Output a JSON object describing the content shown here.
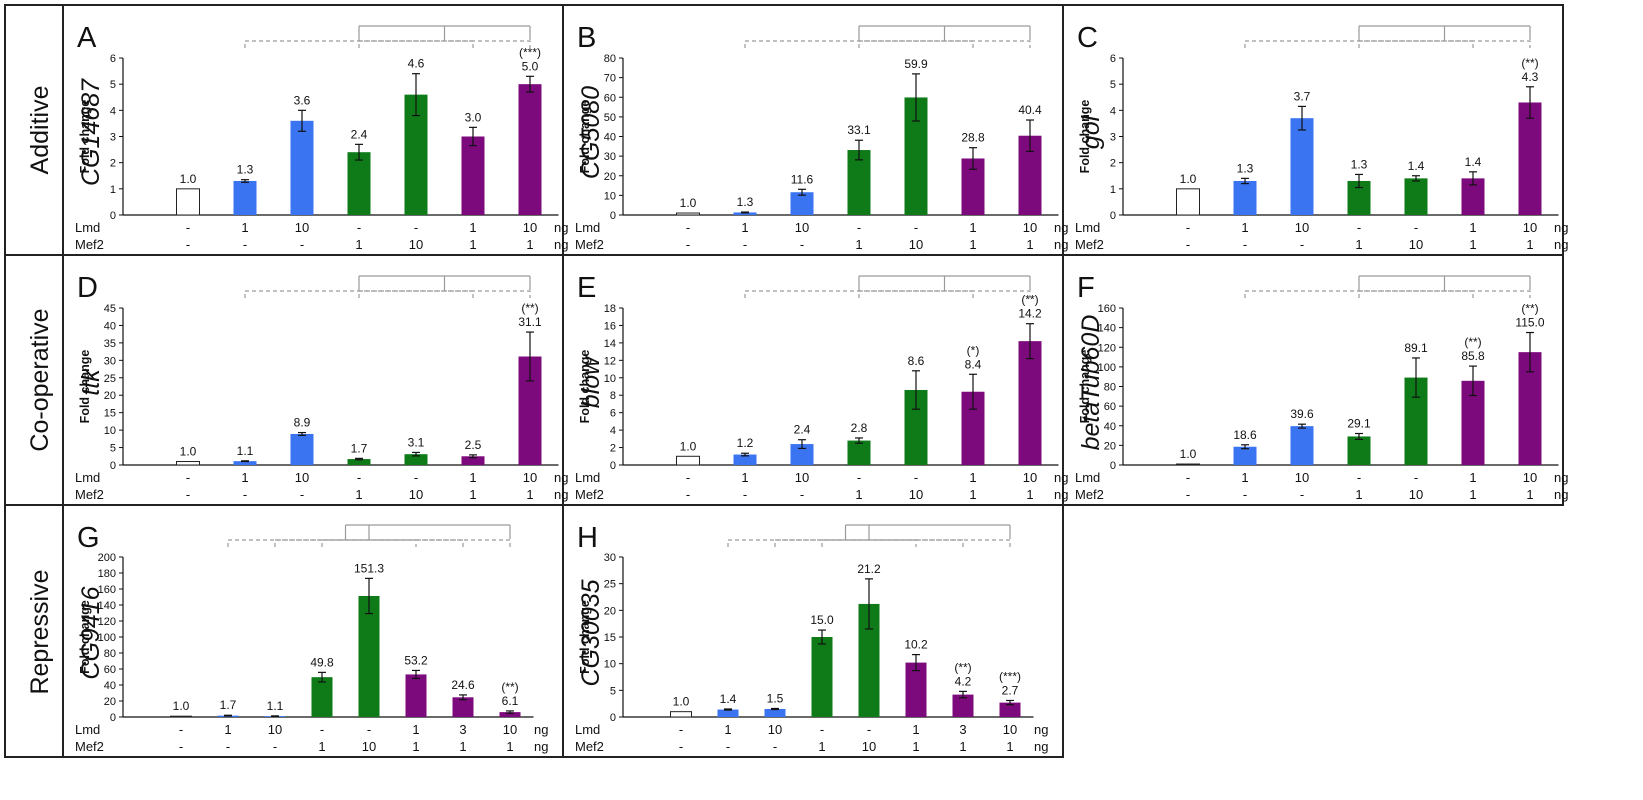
{
  "colors": {
    "control": "#ffffff",
    "lmd": "#3b74f0",
    "mef2": "#0e7a18",
    "combo": "#7d0a7d",
    "bracket": "#9a9a9a"
  },
  "rows": [
    {
      "label": "Additive"
    },
    {
      "label": "Co-operative"
    },
    {
      "label": "Repressive"
    }
  ],
  "chart_data": [
    {
      "type": "bar",
      "panel": "A",
      "gene": "CG14687",
      "ylabel": "Fold change",
      "ylim": [
        0,
        6
      ],
      "yticks": [
        0,
        1,
        2,
        3,
        4,
        5,
        6
      ],
      "values": [
        1.0,
        1.3,
        3.6,
        2.4,
        4.6,
        3.0,
        5.0
      ],
      "errors": [
        0,
        0.05,
        0.4,
        0.3,
        0.8,
        0.35,
        0.3
      ],
      "value_labels": [
        "1.0",
        "1.3",
        "3.6",
        "2.4",
        "4.6",
        "3.0",
        "5.0"
      ],
      "significance": [
        "",
        "",
        "",
        "",
        "",
        "",
        "(***)"
      ],
      "groups": [
        "control",
        "lmd",
        "lmd",
        "mef2",
        "mef2",
        "combo",
        "combo"
      ],
      "lmd": [
        "-",
        "1",
        "10",
        "-",
        "-",
        "1",
        "10"
      ],
      "mef2": [
        "-",
        "-",
        "-",
        "1",
        "10",
        "1",
        "1"
      ],
      "lmd_label": "Lmd",
      "mef2_label": "Mef2",
      "unit": "ng"
    },
    {
      "type": "bar",
      "panel": "B",
      "gene": "CG5080",
      "ylabel": "Fold change",
      "ylim": [
        0,
        80
      ],
      "yticks": [
        0,
        10,
        20,
        30,
        40,
        50,
        60,
        70,
        80
      ],
      "values": [
        1.0,
        1.3,
        11.6,
        33.1,
        59.9,
        28.8,
        40.4
      ],
      "errors": [
        0,
        0.2,
        1.5,
        5,
        12,
        5.5,
        8
      ],
      "value_labels": [
        "1.0",
        "1.3",
        "11.6",
        "33.1",
        "59.9",
        "28.8",
        "40.4"
      ],
      "significance": [
        "",
        "",
        "",
        "",
        "",
        "",
        ""
      ],
      "groups": [
        "control",
        "lmd",
        "lmd",
        "mef2",
        "mef2",
        "combo",
        "combo"
      ],
      "lmd": [
        "-",
        "1",
        "10",
        "-",
        "-",
        "1",
        "10"
      ],
      "mef2": [
        "-",
        "-",
        "-",
        "1",
        "10",
        "1",
        "1"
      ],
      "lmd_label": "Lmd",
      "mef2_label": "Mef2",
      "unit": "ng"
    },
    {
      "type": "bar",
      "panel": "C",
      "gene": "gol",
      "ylabel": "Fold change",
      "ylim": [
        0,
        6
      ],
      "yticks": [
        0,
        1,
        2,
        3,
        4,
        5,
        6
      ],
      "values": [
        1.0,
        1.3,
        3.7,
        1.3,
        1.4,
        1.4,
        4.3
      ],
      "errors": [
        0,
        0.1,
        0.45,
        0.25,
        0.1,
        0.25,
        0.6
      ],
      "value_labels": [
        "1.0",
        "1.3",
        "3.7",
        "1.3",
        "1.4",
        "1.4",
        "4.3"
      ],
      "significance": [
        "",
        "",
        "",
        "",
        "",
        "",
        "(**)"
      ],
      "groups": [
        "control",
        "lmd",
        "lmd",
        "mef2",
        "mef2",
        "combo",
        "combo"
      ],
      "lmd": [
        "-",
        "1",
        "10",
        "-",
        "-",
        "1",
        "10"
      ],
      "mef2": [
        "-",
        "-",
        "-",
        "1",
        "10",
        "1",
        "1"
      ],
      "lmd_label": "Lmd",
      "mef2_label": "Mef2",
      "unit": "ng"
    },
    {
      "type": "bar",
      "panel": "D",
      "gene": "ttk",
      "ylabel": "Fold change",
      "ylim": [
        0,
        45
      ],
      "yticks": [
        0,
        5,
        10,
        15,
        20,
        25,
        30,
        35,
        40,
        45
      ],
      "values": [
        1.0,
        1.1,
        8.9,
        1.7,
        3.1,
        2.5,
        31.1
      ],
      "errors": [
        0,
        0.1,
        0.4,
        0.2,
        0.5,
        0.4,
        7
      ],
      "value_labels": [
        "1.0",
        "1.1",
        "8.9",
        "1.7",
        "3.1",
        "2.5",
        "31.1"
      ],
      "significance": [
        "",
        "",
        "",
        "",
        "",
        "",
        "(**)"
      ],
      "groups": [
        "control",
        "lmd",
        "lmd",
        "mef2",
        "mef2",
        "combo",
        "combo"
      ],
      "lmd": [
        "-",
        "1",
        "10",
        "-",
        "-",
        "1",
        "10"
      ],
      "mef2": [
        "-",
        "-",
        "-",
        "1",
        "10",
        "1",
        "1"
      ],
      "lmd_label": "Lmd",
      "mef2_label": "Mef2",
      "unit": "ng"
    },
    {
      "type": "bar",
      "panel": "E",
      "gene": "blow",
      "ylabel": "Fold change",
      "ylim": [
        0,
        18
      ],
      "yticks": [
        0,
        2,
        4,
        6,
        8,
        10,
        12,
        14,
        16,
        18
      ],
      "values": [
        1.0,
        1.2,
        2.4,
        2.8,
        8.6,
        8.4,
        14.2
      ],
      "errors": [
        0,
        0.15,
        0.5,
        0.3,
        2.2,
        2.0,
        2.0
      ],
      "value_labels": [
        "1.0",
        "1.2",
        "2.4",
        "2.8",
        "8.6",
        "8.4",
        "14.2"
      ],
      "significance": [
        "",
        "",
        "",
        "",
        "",
        "(*)",
        "(**)"
      ],
      "groups": [
        "control",
        "lmd",
        "lmd",
        "mef2",
        "mef2",
        "combo",
        "combo"
      ],
      "lmd": [
        "-",
        "1",
        "10",
        "-",
        "-",
        "1",
        "10"
      ],
      "mef2": [
        "-",
        "-",
        "-",
        "1",
        "10",
        "1",
        "1"
      ],
      "lmd_label": "Lmd",
      "mef2_label": "Mef2",
      "unit": "ng"
    },
    {
      "type": "bar",
      "panel": "F",
      "gene": "betaTub60D",
      "ylabel": "Fold change",
      "ylim": [
        0,
        160
      ],
      "yticks": [
        0,
        20,
        40,
        60,
        80,
        100,
        120,
        140,
        160
      ],
      "values": [
        1.0,
        18.6,
        39.6,
        29.1,
        89.1,
        85.8,
        115.0
      ],
      "errors": [
        0,
        2,
        2,
        3,
        20,
        15,
        20
      ],
      "value_labels": [
        "1.0",
        "18.6",
        "39.6",
        "29.1",
        "89.1",
        "85.8",
        "115.0"
      ],
      "significance": [
        "",
        "",
        "",
        "",
        "",
        "(**)",
        "(**)"
      ],
      "groups": [
        "control",
        "lmd",
        "lmd",
        "mef2",
        "mef2",
        "combo",
        "combo"
      ],
      "lmd": [
        "-",
        "1",
        "10",
        "-",
        "-",
        "1",
        "10"
      ],
      "mef2": [
        "-",
        "-",
        "-",
        "1",
        "10",
        "1",
        "1"
      ],
      "lmd_label": "Lmd",
      "mef2_label": "Mef2",
      "unit": "ng"
    },
    {
      "type": "bar",
      "panel": "G",
      "gene": "CG9416",
      "ylabel": "Fold change",
      "ylim": [
        0,
        200
      ],
      "yticks": [
        0,
        20,
        40,
        60,
        80,
        100,
        120,
        140,
        160,
        180,
        200
      ],
      "values": [
        1.0,
        1.7,
        1.1,
        49.8,
        151.3,
        53.2,
        24.6,
        6.1
      ],
      "errors": [
        0,
        0.5,
        0.3,
        6,
        22,
        5,
        3,
        1.5
      ],
      "value_labels": [
        "1.0",
        "1.7",
        "1.1",
        "49.8",
        "151.3",
        "53.2",
        "24.6",
        "6.1"
      ],
      "significance": [
        "",
        "",
        "",
        "",
        "",
        "",
        "",
        "(**)"
      ],
      "groups": [
        "control",
        "lmd",
        "lmd",
        "mef2",
        "mef2",
        "combo",
        "combo",
        "combo"
      ],
      "lmd": [
        "-",
        "1",
        "10",
        "-",
        "-",
        "1",
        "3",
        "10"
      ],
      "mef2": [
        "-",
        "-",
        "-",
        "1",
        "10",
        "1",
        "1",
        "1"
      ],
      "lmd_label": "Lmd",
      "mef2_label": "Mef2",
      "unit": "ng"
    },
    {
      "type": "bar",
      "panel": "H",
      "gene": "CG30035",
      "ylabel": "Fold change",
      "ylim": [
        0,
        30
      ],
      "yticks": [
        0,
        5,
        10,
        15,
        20,
        25,
        30
      ],
      "values": [
        1.0,
        1.4,
        1.5,
        15.0,
        21.2,
        10.2,
        4.2,
        2.7
      ],
      "errors": [
        0,
        0.1,
        0.1,
        1.3,
        4.7,
        1.5,
        0.6,
        0.4
      ],
      "value_labels": [
        "1.0",
        "1.4",
        "1.5",
        "15.0",
        "21.2",
        "10.2",
        "4.2",
        "2.7"
      ],
      "significance": [
        "",
        "",
        "",
        "",
        "",
        "",
        "(**)",
        "(***)"
      ],
      "groups": [
        "control",
        "lmd",
        "lmd",
        "mef2",
        "mef2",
        "combo",
        "combo",
        "combo"
      ],
      "lmd": [
        "-",
        "1",
        "10",
        "-",
        "-",
        "1",
        "3",
        "10"
      ],
      "mef2": [
        "-",
        "-",
        "-",
        "1",
        "10",
        "1",
        "1",
        "1"
      ],
      "lmd_label": "Lmd",
      "mef2_label": "Mef2",
      "unit": "ng"
    }
  ]
}
